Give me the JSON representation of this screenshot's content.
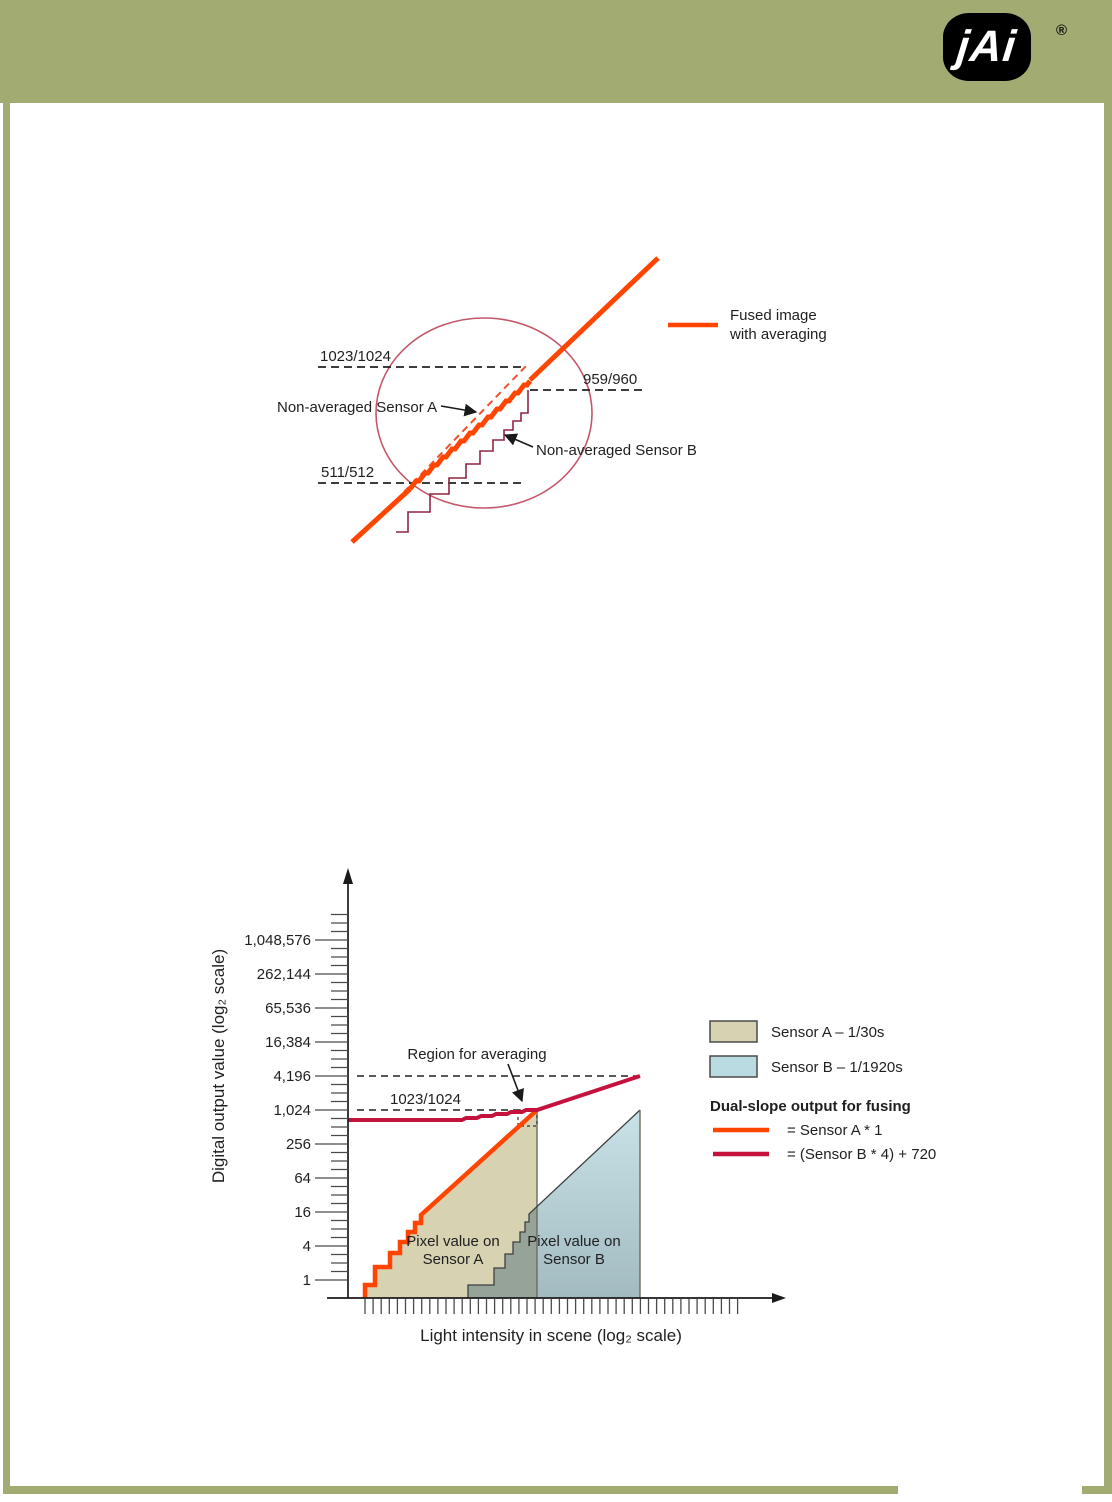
{
  "page": {
    "background": "#FFFFFF",
    "border_color": "#A1AB72"
  },
  "logo": {
    "text": "jAi",
    "registered": "®"
  },
  "fusion_diagram": {
    "legend": {
      "line1": "Fused image",
      "line2": "with averaging"
    },
    "labels": {
      "upper_level": "1023/1024",
      "mid_level": "959/960",
      "lower_level": "511/512",
      "sensor_a": "Non-averaged Sensor A",
      "sensor_b": "Non-averaged Sensor B"
    },
    "colors": {
      "fused_line": "#FF4500",
      "sensor_a_dashed": "#F1502F",
      "sensor_b_staircase": "#8F2742",
      "highlight_circle": "#C4566A"
    }
  },
  "chart": {
    "ylabel": "Digital output value (log₂ scale)",
    "xlabel": "Light intensity in scene (log₂ scale)",
    "y_ticks": [
      "1",
      "4",
      "16",
      "64",
      "256",
      "1,024",
      "4,196",
      "16,384",
      "65,536",
      "262,144",
      "1,048,576"
    ],
    "annotations": {
      "region": "Region for averaging",
      "clip_level": "1023/1024",
      "area_a_line1": "Pixel value on",
      "area_a_line2": "Sensor A",
      "area_b_line1": "Pixel value on",
      "area_b_line2": "Sensor B"
    },
    "legend": {
      "sensor_a": "Sensor A – 1/30s",
      "sensor_b": "Sensor B – 1/1920s",
      "dual_slope_title": "Dual-slope output for fusing",
      "fuse_a": "= Sensor A * 1",
      "fuse_b": "= (Sensor B * 4) + 720"
    },
    "colors": {
      "sensor_a_fill": "#D6D2B2",
      "sensor_b_fill_top": "#C8E2E8",
      "sensor_b_fill_bottom": "#A2BBC0",
      "overlap_fill": "#95A399",
      "sensor_a_line": "#FF4500",
      "sensor_b_line": "#C5123C"
    }
  },
  "chart_data": [
    {
      "type": "line",
      "title": "Fused image with averaging (zoomed transition region)",
      "series": [
        {
          "name": "Fused image with averaging",
          "color": "#FF4500",
          "style": "thick diagonal line with slight averaged steps inside highlighted circle"
        },
        {
          "name": "Non-averaged Sensor A",
          "color": "#F1502F",
          "style": "dashed line parallel to fused line"
        },
        {
          "name": "Non-averaged Sensor B",
          "color": "#8F2742",
          "style": "staircase with steps shrinking toward top"
        }
      ],
      "annotations": [
        "1023/1024",
        "959/960",
        "511/512"
      ],
      "legend_position": "right",
      "grid": false
    },
    {
      "type": "area",
      "title": "Dual-slope sensor fusion transfer curves",
      "xlabel": "Light intensity in scene (log₂ scale)",
      "ylabel": "Digital output value (log₂ scale)",
      "x_axis": {
        "scale": "log2",
        "tick_labels": []
      },
      "y_axis": {
        "scale": "log2",
        "tick_labels": [
          "1",
          "4",
          "16",
          "64",
          "256",
          "1,024",
          "4,196",
          "16,384",
          "65,536",
          "262,144",
          "1,048,576"
        ]
      },
      "series": [
        {
          "name": "Sensor A – 1/30s",
          "type": "area",
          "color": "#D6D2B2",
          "description": "Pixel value on Sensor A: rises from 1 up to 1023/1024 over the darker ~10 octaves, then clips"
        },
        {
          "name": "Sensor B – 1/1920s",
          "type": "area",
          "color": "#BADBE2",
          "description": "Pixel value on Sensor B: same staircase/ramp shifted ~6 octaves brighter, rises from 1 up to 1023/1024"
        },
        {
          "name": "= Sensor A * 1",
          "type": "line",
          "color": "#FF4500",
          "description": "Dual-slope output for fusing: follows Sensor A until it clips at 1023/1024"
        },
        {
          "name": "= (Sensor B * 4) + 720",
          "type": "line",
          "color": "#C5123C",
          "description": "Dual-slope output for fusing: flat near 720 then rises to ~4,196 where Sensor B saturates"
        }
      ],
      "annotations": [
        "Region for averaging",
        "1023/1024"
      ],
      "legend_position": "right",
      "grid": false
    }
  ]
}
